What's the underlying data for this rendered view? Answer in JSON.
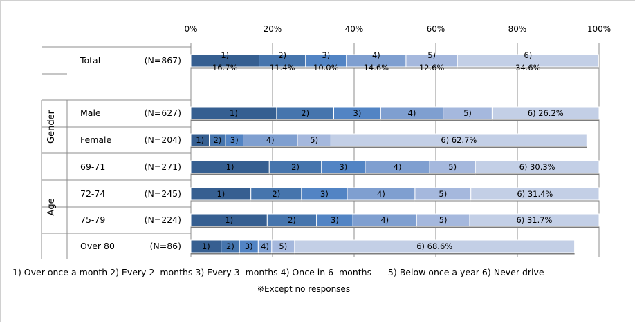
{
  "chart_data": {
    "type": "bar",
    "stacked": true,
    "orientation": "horizontal",
    "title": "",
    "xlim": [
      0,
      100
    ],
    "x_ticks": [
      "0%",
      "20%",
      "40%",
      "60%",
      "80%",
      "100%"
    ],
    "grid": true,
    "colors": [
      "#365f91",
      "#4675ad",
      "#5284c4",
      "#7f9fd0",
      "#a5b8dd",
      "#c3cfe6"
    ],
    "segment_labels": [
      "1)",
      "2)",
      "3)",
      "4)",
      "5)",
      "6)"
    ],
    "groups": [
      {
        "label": "",
        "rows": [
          0
        ]
      },
      {
        "label": "Gender",
        "rows": [
          1,
          2
        ]
      },
      {
        "label": "Age",
        "rows": [
          3,
          4,
          5,
          6
        ]
      }
    ],
    "rows": [
      {
        "category": "Total",
        "n": "(N=867)",
        "values": [
          16.7,
          11.4,
          10.0,
          14.6,
          12.6,
          34.6
        ],
        "labels": [
          "1)\n16.7%",
          "2)\n11.4%",
          "3)\n10.0%",
          "4)\n14.6%",
          "5)\n12.6%",
          "6)\n34.6%"
        ]
      },
      {
        "category": "Male",
        "n": "(N=627)",
        "values": [
          21.0,
          14.0,
          11.5,
          15.3,
          12.0,
          26.2
        ],
        "labels": [
          "1)",
          "2)",
          "3)",
          "4)",
          "5)",
          "6) 26.2%"
        ]
      },
      {
        "category": "Female",
        "n": "(N=204)",
        "values": [
          4.5,
          4.0,
          4.3,
          13.3,
          8.2,
          62.7
        ],
        "labels": [
          "1)",
          "2)",
          "3)",
          "4)",
          "5)",
          "6) 62.7%"
        ]
      },
      {
        "category": "69-71",
        "n": "(N=271)",
        "values": [
          19.2,
          12.8,
          10.7,
          15.8,
          11.2,
          30.3
        ],
        "labels": [
          "1)",
          "2)",
          "3)",
          "4)",
          "5)",
          "6) 30.3%"
        ]
      },
      {
        "category": "72-74",
        "n": "(N=245)",
        "values": [
          14.7,
          12.4,
          11.2,
          16.6,
          13.7,
          31.4
        ],
        "labels": [
          "1)",
          "2)",
          "3)",
          "4)",
          "5)",
          "6) 31.4%"
        ]
      },
      {
        "category": "75-79",
        "n": "(N=224)",
        "values": [
          18.7,
          12.1,
          8.9,
          15.6,
          13.0,
          31.7
        ],
        "labels": [
          "1)",
          "2)",
          "3)",
          "4)",
          "5)",
          "6) 31.7%"
        ]
      },
      {
        "category": "Over 80",
        "n": "(N=86)",
        "values": [
          7.4,
          4.5,
          4.6,
          3.3,
          5.6,
          68.6
        ],
        "labels": [
          "1)",
          "2)",
          "3)",
          "4)",
          "5)",
          "6) 68.6%"
        ]
      }
    ],
    "legend_text": "1) Over once a month 2) Every 2  months 3) Every 3  months 4) Once in 6  months      5) Below once a year 6) Never drive",
    "note": "※Except no responses"
  }
}
